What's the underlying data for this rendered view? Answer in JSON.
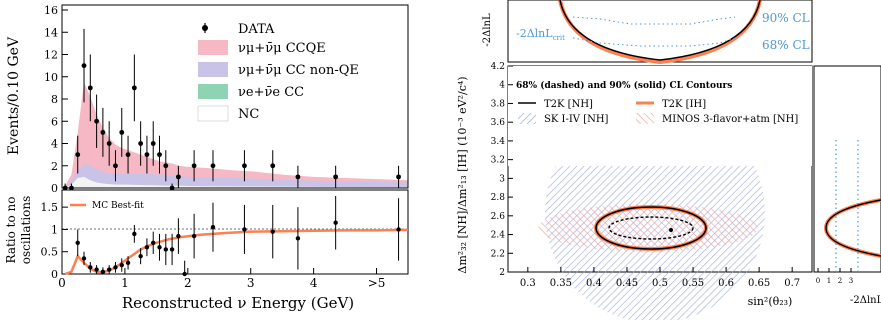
{
  "left": {
    "top_panel": {
      "ylabel": "Events/0.10 GeV",
      "y_ticks": [
        "0",
        "2",
        "4",
        "6",
        "8",
        "10",
        "12",
        "14",
        "16"
      ],
      "ylim": [
        0,
        16
      ],
      "legend": [
        "DATA",
        "νμ+ν̄μ CCQE",
        "νμ+ν̄μ CC non-QE",
        "νe+ν̄e CC",
        "NC"
      ]
    },
    "bottom_panel": {
      "ylabel_line1": "Ratio to no",
      "ylabel_line2": "oscillations",
      "y_ticks": [
        "0",
        "0.5",
        "1",
        "1.5"
      ],
      "ylim": [
        0,
        1.75
      ],
      "legend": [
        "MC Best-fit"
      ]
    },
    "xlabel": "Reconstructed ν Energy (GeV)",
    "x_ticks": [
      "0",
      "1",
      "2",
      "3",
      "4",
      ">5"
    ],
    "xlim": [
      0,
      5.5
    ]
  },
  "right": {
    "top_panel": {
      "ylabel": "-2ΔlnL",
      "annotation": "-2ΔlnL",
      "annotation_sub": "crit",
      "cl_labels": [
        "90% CL",
        "68% CL"
      ]
    },
    "main_panel": {
      "title": "68% (dashed) and 90% (solid) CL Contours",
      "legend": [
        "T2K [NH]",
        "T2K [IH]",
        "SK I-IV [NH]",
        "MINOS 3-flavor+atm [NH]"
      ],
      "ylabel": "Δm²₃₂ [NH]/Δm²₁₃ [IH] (10⁻³ eV²/c⁴)",
      "y_ticks": [
        "2",
        "2.2",
        "2.4",
        "2.6",
        "2.8",
        "3",
        "3.2",
        "3.4",
        "3.6",
        "3.8",
        "4",
        "4.2"
      ],
      "ylim": [
        2.0,
        4.2
      ],
      "x_ticks": [
        "0.3",
        "0.35",
        "0.4",
        "0.45",
        "0.5",
        "0.55",
        "0.6",
        "0.65",
        "0.7"
      ],
      "xlim": [
        0.27,
        0.73
      ],
      "xlabel": "sin²(θ₂₃)"
    },
    "side_panel": {
      "x_ticks": [
        "0",
        "1",
        "2",
        "3"
      ],
      "xlabel": "-2ΔlnL"
    }
  },
  "colors": {
    "ccqe": "#f5b8c4",
    "cc_nonqe": "#c9c3e8",
    "nue": "#8fd3b5",
    "nc": "#ffffff",
    "t2k_nh": "#000000",
    "t2k_ih": "#ff7f50",
    "sk": "#9aa8dc",
    "minos": "#f2a39a",
    "cl_curve": "#4f97d6"
  },
  "chart_data": [
    {
      "type": "bar",
      "panel": "Events spectrum",
      "xlabel": "Reconstructed ν Energy (GeV)",
      "ylabel": "Events/0.10 GeV",
      "xlim": [
        0,
        5.5
      ],
      "ylim": [
        0,
        16
      ],
      "data_points": [
        {
          "x": 0.05,
          "y": 0,
          "err": 0.4
        },
        {
          "x": 0.15,
          "y": 0,
          "err": 0.4
        },
        {
          "x": 0.25,
          "y": 3,
          "err": 1.7
        },
        {
          "x": 0.35,
          "y": 11,
          "err": 3.3
        },
        {
          "x": 0.45,
          "y": 9,
          "err": 3.0
        },
        {
          "x": 0.55,
          "y": 6,
          "err": 2.4
        },
        {
          "x": 0.65,
          "y": 5,
          "err": 2.2
        },
        {
          "x": 0.75,
          "y": 4,
          "err": 2.0
        },
        {
          "x": 0.85,
          "y": 2,
          "err": 1.4
        },
        {
          "x": 0.95,
          "y": 5,
          "err": 2.2
        },
        {
          "x": 1.05,
          "y": 3,
          "err": 1.7
        },
        {
          "x": 1.15,
          "y": 9,
          "err": 3.0
        },
        {
          "x": 1.25,
          "y": 4,
          "err": 2.0
        },
        {
          "x": 1.35,
          "y": 3,
          "err": 1.7
        },
        {
          "x": 1.45,
          "y": 4,
          "err": 2.0
        },
        {
          "x": 1.55,
          "y": 3,
          "err": 1.7
        },
        {
          "x": 1.65,
          "y": 2,
          "err": 1.4
        },
        {
          "x": 1.75,
          "y": 0,
          "err": 0.4
        },
        {
          "x": 1.85,
          "y": 1,
          "err": 1.0
        },
        {
          "x": 2.1,
          "y": 2,
          "err": 1.4
        },
        {
          "x": 2.4,
          "y": 2,
          "err": 1.4
        },
        {
          "x": 2.9,
          "y": 2,
          "err": 1.4
        },
        {
          "x": 3.35,
          "y": 2,
          "err": 1.4
        },
        {
          "x": 3.75,
          "y": 1,
          "err": 1.0
        },
        {
          "x": 4.35,
          "y": 1,
          "err": 1.0
        },
        {
          "x": 5.35,
          "y": 1,
          "err": 1.0
        }
      ],
      "series": [
        {
          "name": "νμ+ν̄μ CCQE (total)",
          "x": [
            0.05,
            0.15,
            0.25,
            0.35,
            0.45,
            0.55,
            0.65,
            0.75,
            0.85,
            0.95,
            1.05,
            1.15,
            1.25,
            1.35,
            1.45,
            1.55,
            1.65,
            1.75,
            1.85,
            2.0,
            2.3,
            2.7,
            3.0,
            3.5,
            4.0,
            4.5,
            5.0,
            5.5
          ],
          "values": [
            0.2,
            1.2,
            5.0,
            9.5,
            8.2,
            6.6,
            5.4,
            4.5,
            3.9,
            3.6,
            3.4,
            3.2,
            3.0,
            2.8,
            2.6,
            2.4,
            2.3,
            2.2,
            2.0,
            1.9,
            1.8,
            1.6,
            1.5,
            1.2,
            1.0,
            0.9,
            0.8,
            0.7
          ]
        },
        {
          "name": "νμ+ν̄μ CC non-QE",
          "x": [
            0.05,
            0.15,
            0.25,
            0.35,
            0.45,
            0.55,
            0.65,
            0.75,
            0.85,
            0.95,
            1.05,
            1.15,
            1.25,
            1.35,
            1.45,
            1.55,
            1.65,
            1.75,
            1.85,
            2.0,
            2.3,
            2.7,
            3.0,
            3.5,
            4.0,
            4.5,
            5.0,
            5.5
          ],
          "values": [
            0.1,
            0.6,
            1.5,
            2.2,
            2.0,
            1.7,
            1.5,
            1.3,
            1.3,
            1.3,
            1.3,
            1.3,
            1.3,
            1.3,
            1.25,
            1.2,
            1.2,
            1.1,
            1.1,
            1.0,
            0.95,
            0.9,
            0.85,
            0.75,
            0.65,
            0.6,
            0.55,
            0.5
          ]
        },
        {
          "name": "NC",
          "x": [
            0.05,
            0.15,
            0.25,
            0.35,
            0.45,
            0.55,
            0.65,
            0.75,
            0.85,
            0.95,
            1.05,
            1.15,
            1.25,
            1.35,
            1.45,
            1.55,
            1.65,
            1.75,
            1.85,
            2.0,
            2.3,
            2.7,
            3.0,
            3.5,
            4.0,
            4.5,
            5.0,
            5.5
          ],
          "values": [
            0.05,
            0.3,
            0.9,
            1.0,
            0.7,
            0.5,
            0.4,
            0.35,
            0.3,
            0.3,
            0.3,
            0.28,
            0.27,
            0.25,
            0.25,
            0.22,
            0.2,
            0.2,
            0.2,
            0.18,
            0.16,
            0.15,
            0.14,
            0.12,
            0.1,
            0.09,
            0.08,
            0.07
          ]
        }
      ]
    },
    {
      "type": "scatter",
      "panel": "Ratio to no oscillations",
      "xlim": [
        0,
        5.5
      ],
      "ylim": [
        0,
        1.75
      ],
      "data_points": [
        {
          "x": 0.25,
          "y": 0.7,
          "err": 0.3
        },
        {
          "x": 0.35,
          "y": 0.35,
          "err": 0.15
        },
        {
          "x": 0.45,
          "y": 0.15,
          "err": 0.12
        },
        {
          "x": 0.55,
          "y": 0.1,
          "err": 0.1
        },
        {
          "x": 0.65,
          "y": 0.05,
          "err": 0.1
        },
        {
          "x": 0.75,
          "y": 0.1,
          "err": 0.1
        },
        {
          "x": 0.85,
          "y": 0.15,
          "err": 0.12
        },
        {
          "x": 0.95,
          "y": 0.2,
          "err": 0.15
        },
        {
          "x": 1.05,
          "y": 0.25,
          "err": 0.15
        },
        {
          "x": 1.15,
          "y": 0.9,
          "err": 0.2
        },
        {
          "x": 1.25,
          "y": 0.4,
          "err": 0.18
        },
        {
          "x": 1.35,
          "y": 0.6,
          "err": 0.2
        },
        {
          "x": 1.45,
          "y": 0.7,
          "err": 0.25
        },
        {
          "x": 1.55,
          "y": 0.6,
          "err": 0.3
        },
        {
          "x": 1.65,
          "y": 0.55,
          "err": 0.35
        },
        {
          "x": 1.75,
          "y": 0.55,
          "err": 0.35
        },
        {
          "x": 1.85,
          "y": 0.85,
          "err": 0.4
        },
        {
          "x": 1.95,
          "y": 0.0,
          "err": 0.3
        },
        {
          "x": 2.1,
          "y": 0.85,
          "err": 0.5
        },
        {
          "x": 2.4,
          "y": 1.05,
          "err": 0.55
        },
        {
          "x": 2.9,
          "y": 1.0,
          "err": 0.55
        },
        {
          "x": 3.35,
          "y": 0.95,
          "err": 0.6
        },
        {
          "x": 3.75,
          "y": 0.8,
          "err": 0.7
        },
        {
          "x": 4.35,
          "y": 1.15,
          "err": 0.6
        },
        {
          "x": 5.35,
          "y": 1.0,
          "err": 0.7
        }
      ],
      "series": [
        {
          "name": "MC Best-fit",
          "x": [
            0.05,
            0.15,
            0.25,
            0.35,
            0.45,
            0.55,
            0.65,
            0.75,
            0.85,
            0.95,
            1.05,
            1.15,
            1.25,
            1.35,
            1.5,
            1.7,
            1.9,
            2.2,
            2.6,
            3.0,
            3.5,
            4.0,
            4.5,
            5.0,
            5.5
          ],
          "values": [
            0.0,
            0.05,
            0.4,
            0.25,
            0.12,
            0.05,
            0.04,
            0.08,
            0.15,
            0.25,
            0.35,
            0.45,
            0.55,
            0.62,
            0.7,
            0.78,
            0.83,
            0.88,
            0.92,
            0.95,
            0.96,
            0.97,
            0.98,
            0.98,
            0.99
          ]
        }
      ]
    },
    {
      "type": "line",
      "panel": "Δχ² profile (top)",
      "ylabel": "-2ΔlnL",
      "xlim": [
        0.27,
        0.73
      ],
      "series": [
        {
          "name": "90% CL",
          "x": [
            0.37,
            0.45,
            0.55,
            0.63
          ],
          "values": [
            2.7,
            2.35,
            2.35,
            2.7
          ]
        },
        {
          "name": "68% CL",
          "x": [
            0.37,
            0.45,
            0.55,
            0.63
          ],
          "values": [
            1.1,
            1.0,
            1.0,
            1.1
          ]
        }
      ]
    },
    {
      "type": "scatter",
      "panel": "Contours",
      "title": "68% (dashed) and 90% (solid) CL Contours",
      "xlabel": "sin²(θ₂₃)",
      "ylabel": "Δm²₃₂ [NH]/Δm²₁₃ [IH] (10⁻³ eV²/c⁴)",
      "xlim": [
        0.27,
        0.73
      ],
      "ylim": [
        2.0,
        4.2
      ],
      "best_fit": {
        "x": 0.514,
        "y": 2.51
      },
      "series": [
        {
          "name": "T2K [NH] 90%",
          "center": [
            0.514,
            2.51
          ],
          "half_width": [
            0.085,
            0.12
          ]
        },
        {
          "name": "T2K [NH] 68%",
          "center": [
            0.514,
            2.51
          ],
          "half_width": [
            0.07,
            0.07
          ]
        },
        {
          "name": "T2K [IH] 90%",
          "center": [
            0.514,
            2.51
          ],
          "half_width": [
            0.088,
            0.125
          ]
        },
        {
          "name": "SK I-IV [NH]",
          "center": [
            0.53,
            2.6
          ],
          "half_width": [
            0.18,
            0.75
          ]
        },
        {
          "name": "MINOS 3-flavor+atm [NH]",
          "center": [
            0.5,
            2.5
          ],
          "half_width": [
            0.17,
            0.22
          ]
        }
      ]
    }
  ]
}
